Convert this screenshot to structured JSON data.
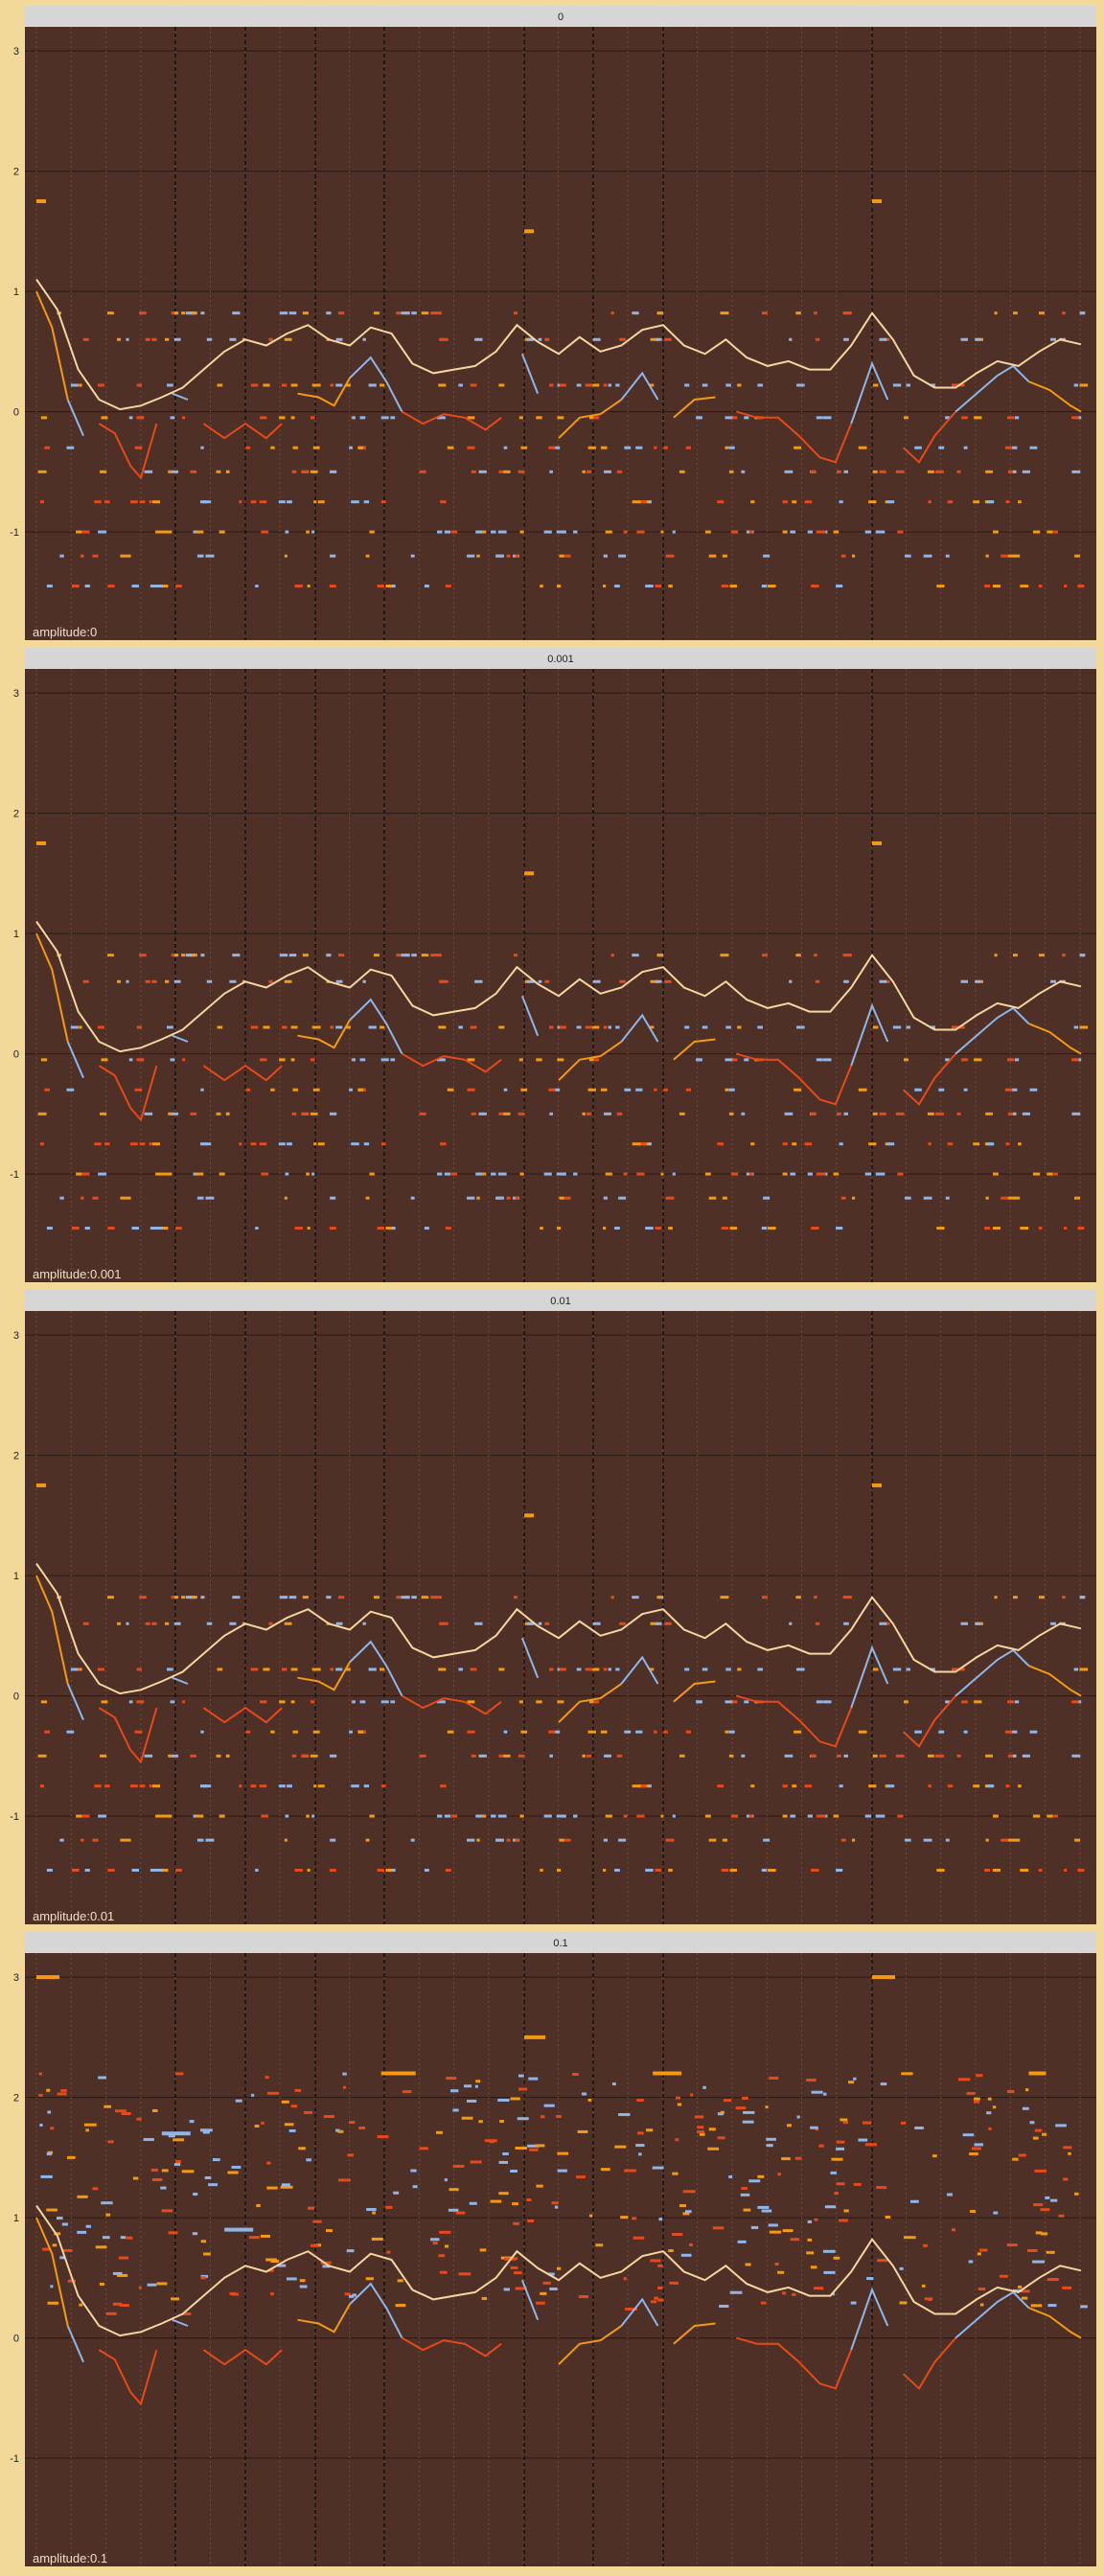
{
  "figure": {
    "background": "#f2d99a",
    "panel_background": "#4e3026",
    "strip_background": "#d6d6d6",
    "grid_color": "#2a1a14",
    "tick_labels_y": [
      "3",
      "2",
      "1",
      "0",
      "-1"
    ]
  },
  "colors": {
    "envelope": "#f5d6a0",
    "curve_blue": "#8fb6ea",
    "curve_red": "#e8491a",
    "curve_orange": "#f39a10",
    "points_blue": "#8fb6ea",
    "points_red": "#e8491a",
    "points_orange": "#f39a10"
  },
  "chart_data": [
    {
      "type": "scatter",
      "title": "0",
      "annotation": "amplitude:0",
      "xlim": [
        0,
        100
      ],
      "ylim": [
        -1.9,
        3.2
      ],
      "yticks": [
        3,
        2,
        1,
        0,
        -1
      ],
      "dashed_vlines": [
        13.3,
        20,
        26.7,
        33.3,
        46.7,
        53.3,
        60,
        80
      ],
      "dotted_vlines_step": 3.33,
      "amplitude": 0
    },
    {
      "type": "scatter",
      "title": "0.001",
      "annotation": "amplitude:0.001",
      "xlim": [
        0,
        100
      ],
      "ylim": [
        -1.9,
        3.2
      ],
      "yticks": [
        3,
        2,
        1,
        0,
        -1
      ],
      "dashed_vlines": [
        13.3,
        20,
        26.7,
        33.3,
        46.7,
        53.3,
        60,
        80
      ],
      "dotted_vlines_step": 3.33,
      "amplitude": 0.001
    },
    {
      "type": "scatter",
      "title": "0.01",
      "annotation": "amplitude:0.01",
      "xlim": [
        0,
        100
      ],
      "ylim": [
        -1.9,
        3.2
      ],
      "yticks": [
        3,
        2,
        1,
        0,
        -1
      ],
      "dashed_vlines": [
        13.3,
        20,
        26.7,
        33.3,
        46.7,
        53.3,
        60,
        80
      ],
      "dotted_vlines_step": 3.33,
      "amplitude": 0.01
    },
    {
      "type": "scatter",
      "title": "0.1",
      "annotation": "amplitude:0.1",
      "xlim": [
        0,
        100
      ],
      "ylim": [
        -1.9,
        3.2
      ],
      "yticks": [
        3,
        2,
        1,
        0,
        -1
      ],
      "dashed_vlines": [
        13.3,
        20,
        26.7,
        33.3,
        46.7,
        53.3,
        60,
        80
      ],
      "dotted_vlines_step": 3.33,
      "amplitude": 0.1
    }
  ],
  "series": {
    "envelope": [
      [
        0,
        1.1
      ],
      [
        2,
        0.85
      ],
      [
        4,
        0.35
      ],
      [
        6,
        0.1
      ],
      [
        8,
        0.02
      ],
      [
        10,
        0.05
      ],
      [
        12,
        0.12
      ],
      [
        14,
        0.2
      ],
      [
        16,
        0.35
      ],
      [
        18,
        0.5
      ],
      [
        20,
        0.6
      ],
      [
        22,
        0.55
      ],
      [
        24,
        0.65
      ],
      [
        26,
        0.72
      ],
      [
        28,
        0.6
      ],
      [
        30,
        0.55
      ],
      [
        32,
        0.7
      ],
      [
        34,
        0.65
      ],
      [
        36,
        0.4
      ],
      [
        38,
        0.32
      ],
      [
        40,
        0.35
      ],
      [
        42,
        0.38
      ],
      [
        44,
        0.5
      ],
      [
        46,
        0.72
      ],
      [
        48,
        0.58
      ],
      [
        50,
        0.48
      ],
      [
        52,
        0.62
      ],
      [
        54,
        0.5
      ],
      [
        56,
        0.55
      ],
      [
        58,
        0.68
      ],
      [
        60,
        0.72
      ],
      [
        62,
        0.55
      ],
      [
        64,
        0.48
      ],
      [
        66,
        0.6
      ],
      [
        68,
        0.45
      ],
      [
        70,
        0.38
      ],
      [
        72,
        0.42
      ],
      [
        74,
        0.35
      ],
      [
        76,
        0.35
      ],
      [
        78,
        0.55
      ],
      [
        80,
        0.82
      ],
      [
        82,
        0.6
      ],
      [
        84,
        0.3
      ],
      [
        86,
        0.2
      ],
      [
        88,
        0.2
      ],
      [
        90,
        0.32
      ],
      [
        92,
        0.42
      ],
      [
        94,
        0.38
      ],
      [
        96,
        0.5
      ],
      [
        98,
        0.6
      ],
      [
        100,
        0.56
      ]
    ],
    "curve": [
      [
        0,
        1.0
      ],
      [
        1.5,
        0.7
      ],
      [
        3,
        0.1
      ],
      [
        4.5,
        -0.2
      ],
      [
        6,
        -0.1
      ],
      [
        7.5,
        -0.18
      ],
      [
        9,
        -0.45
      ],
      [
        10,
        -0.55
      ],
      [
        11.5,
        -0.1
      ],
      [
        13,
        0.15
      ],
      [
        14.5,
        0.1
      ],
      [
        16,
        -0.1
      ],
      [
        18,
        -0.22
      ],
      [
        20,
        -0.1
      ],
      [
        22,
        -0.22
      ],
      [
        23.5,
        -0.1
      ],
      [
        25,
        0.15
      ],
      [
        27,
        0.12
      ],
      [
        28.5,
        0.05
      ],
      [
        30,
        0.28
      ],
      [
        32,
        0.45
      ],
      [
        33.5,
        0.25
      ],
      [
        35,
        0.0
      ],
      [
        37,
        -0.1
      ],
      [
        39,
        -0.02
      ],
      [
        41,
        -0.05
      ],
      [
        43,
        -0.15
      ],
      [
        44.5,
        -0.05
      ],
      [
        46.5,
        0.48
      ],
      [
        48,
        0.15
      ],
      [
        50,
        -0.22
      ],
      [
        52,
        -0.05
      ],
      [
        54,
        -0.02
      ],
      [
        56,
        0.1
      ],
      [
        58,
        0.32
      ],
      [
        59.5,
        0.1
      ],
      [
        61,
        -0.05
      ],
      [
        63,
        0.1
      ],
      [
        65,
        0.12
      ],
      [
        67,
        0.0
      ],
      [
        69,
        -0.05
      ],
      [
        71,
        -0.05
      ],
      [
        73,
        -0.2
      ],
      [
        75,
        -0.38
      ],
      [
        76.5,
        -0.42
      ],
      [
        78,
        -0.1
      ],
      [
        80,
        0.4
      ],
      [
        81.5,
        0.1
      ],
      [
        83,
        -0.3
      ],
      [
        84.5,
        -0.42
      ],
      [
        86,
        -0.2
      ],
      [
        88,
        0.0
      ],
      [
        90,
        0.15
      ],
      [
        92,
        0.3
      ],
      [
        93.5,
        0.38
      ],
      [
        95,
        0.25
      ],
      [
        97,
        0.18
      ],
      [
        99,
        0.05
      ],
      [
        100,
        0.0
      ]
    ],
    "colors_by_segment": [
      [
        0,
        3,
        "curve_orange"
      ],
      [
        3,
        5,
        "curve_blue"
      ],
      [
        5,
        12,
        "curve_red"
      ],
      [
        12,
        15,
        "curve_blue"
      ],
      [
        15,
        24,
        "curve_red"
      ],
      [
        24,
        30,
        "curve_orange"
      ],
      [
        30,
        35,
        "curve_blue"
      ],
      [
        35,
        45,
        "curve_red"
      ],
      [
        45,
        49,
        "curve_blue"
      ],
      [
        49,
        56,
        "curve_orange"
      ],
      [
        56,
        60,
        "curve_blue"
      ],
      [
        60,
        66,
        "curve_orange"
      ],
      [
        66,
        78,
        "curve_red"
      ],
      [
        78,
        82,
        "curve_blue"
      ],
      [
        82,
        88,
        "curve_red"
      ],
      [
        88,
        95,
        "curve_blue"
      ],
      [
        95,
        100,
        "curve_orange"
      ]
    ]
  }
}
